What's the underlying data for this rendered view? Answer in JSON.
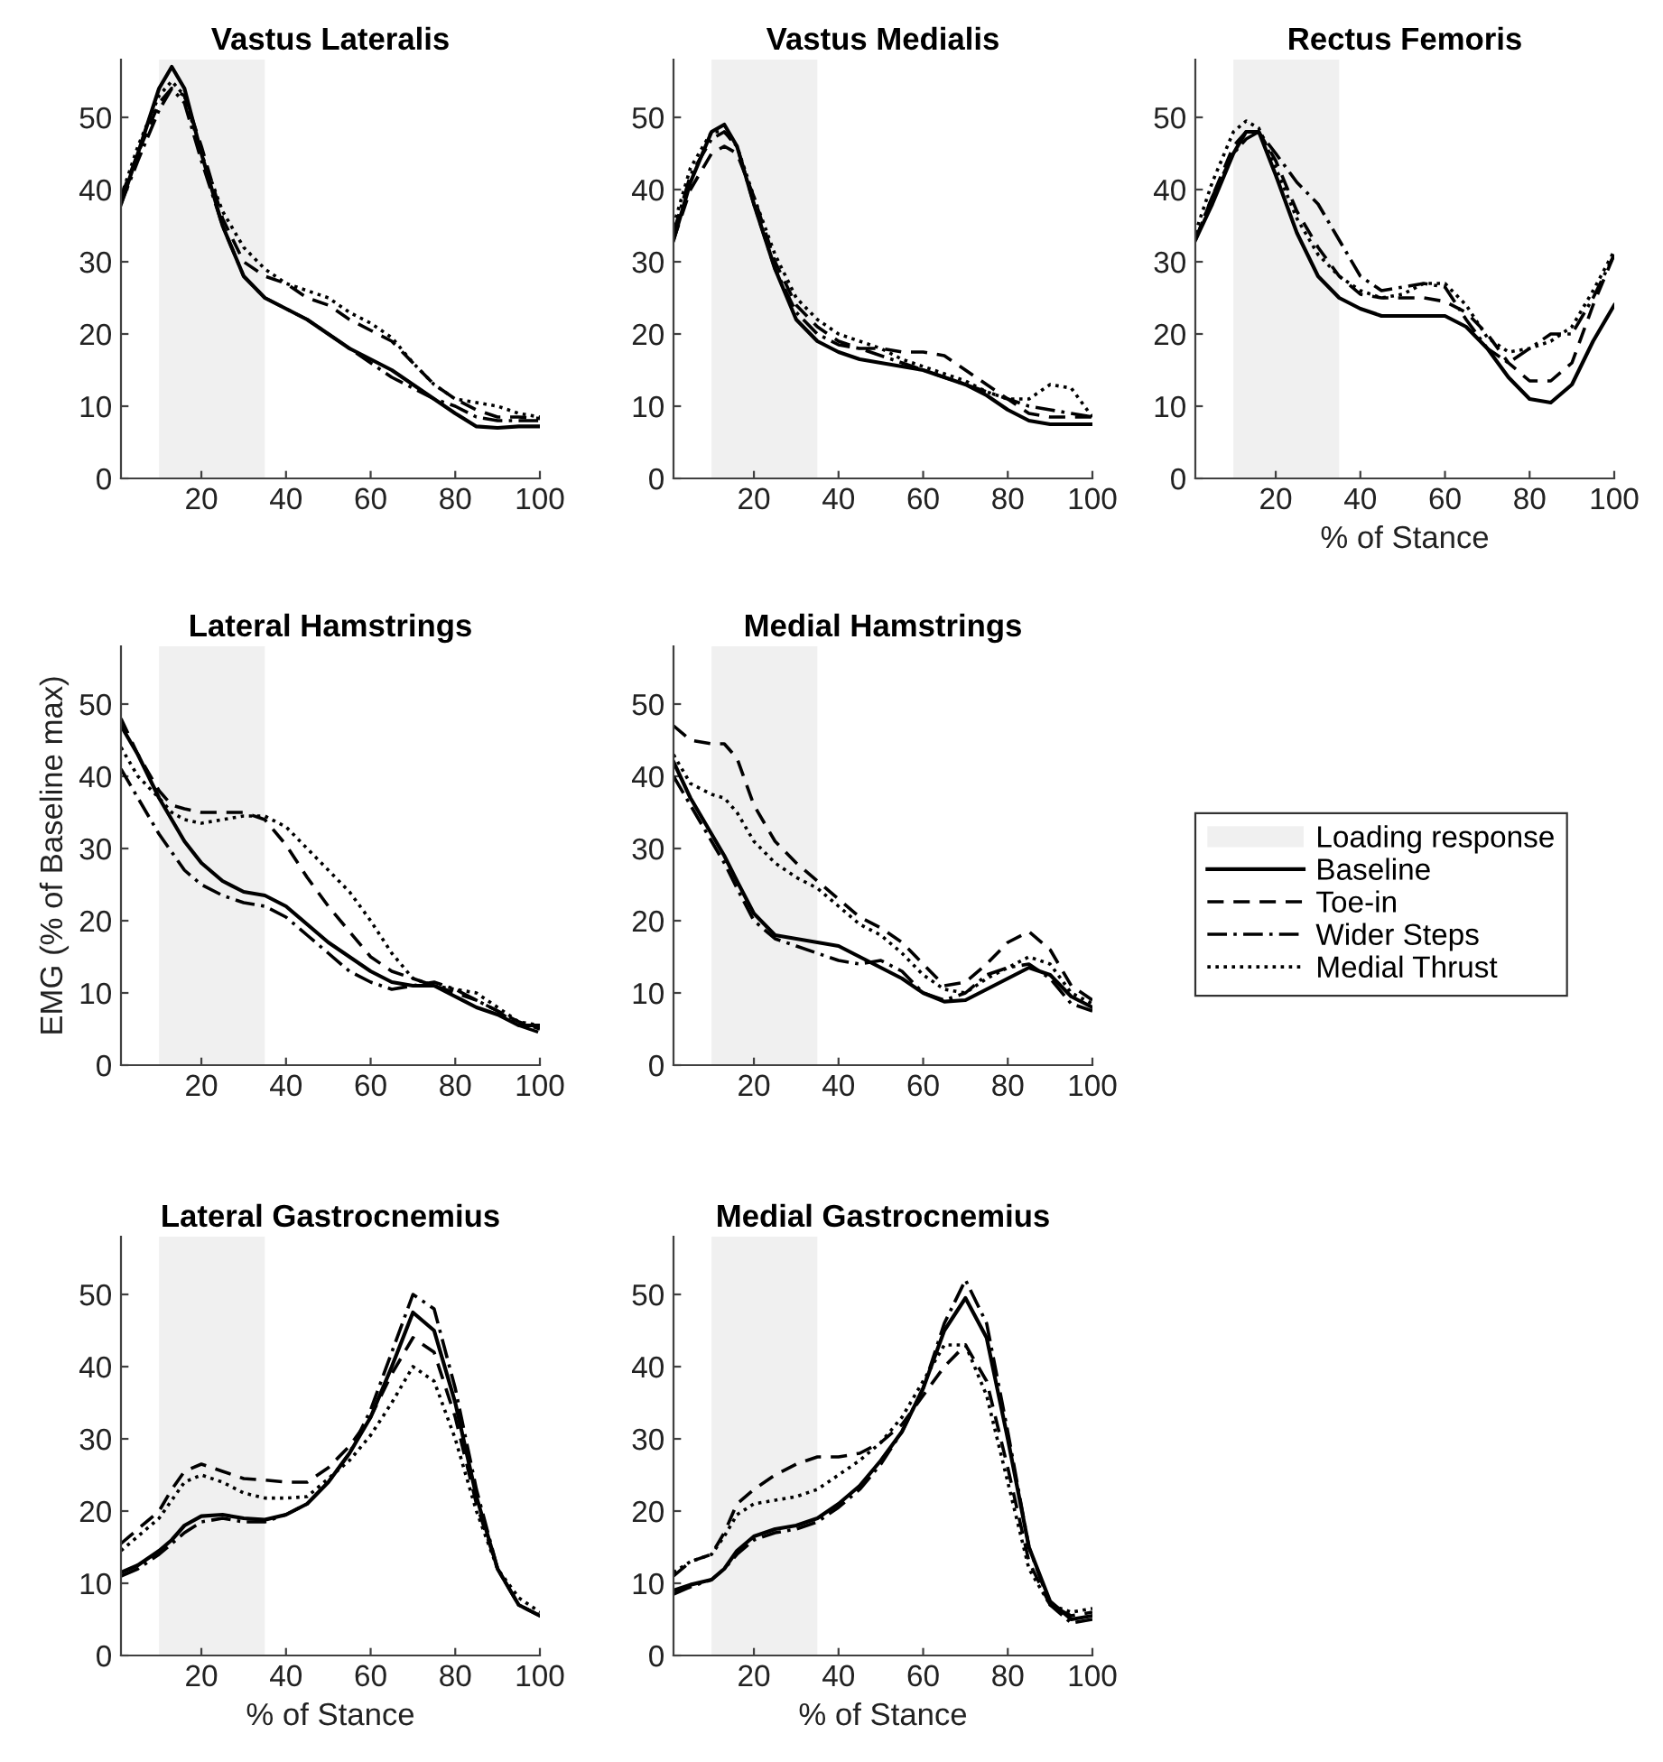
{
  "chart_data": [
    {
      "type": "line",
      "title": "Vastus Lateralis",
      "legend": "right",
      "x": [
        1,
        5,
        10,
        13,
        16,
        20,
        25,
        30,
        35,
        40,
        45,
        50,
        55,
        60,
        65,
        70,
        75,
        80,
        85,
        90,
        95,
        100
      ],
      "xlim": [
        1,
        100
      ],
      "ylim": [
        0,
        58
      ],
      "xticks": [
        20,
        40,
        60,
        80,
        100
      ],
      "yticks": [
        0,
        10,
        20,
        30,
        40,
        50
      ],
      "bands": [
        {
          "axis": "x",
          "from": 10,
          "to": 35,
          "label": "Loading response",
          "color": "#f0f0f0"
        }
      ],
      "series": [
        {
          "name": "Baseline",
          "color": "#000000",
          "line_style": "solid",
          "values": [
            38,
            45,
            54,
            57,
            54,
            45,
            35,
            28,
            25,
            23.5,
            22,
            20,
            18,
            16.5,
            15,
            13,
            11,
            9,
            7.2,
            7,
            7.2,
            7.2
          ]
        },
        {
          "name": "Toe-in",
          "color": "#000000",
          "line_style": "dashed",
          "values": [
            39,
            45,
            52,
            54,
            53,
            46,
            36,
            30,
            28,
            27,
            25,
            24,
            22,
            20.5,
            19,
            16,
            13,
            11,
            9.5,
            8.5,
            8.5,
            8.3
          ]
        },
        {
          "name": "Wider Steps",
          "color": "#000000",
          "line_style": "dashdot",
          "values": [
            38,
            44,
            51,
            54,
            52,
            44,
            35,
            28,
            25,
            23.5,
            22,
            20,
            18,
            16,
            14,
            12.5,
            11,
            10,
            8.5,
            8,
            8,
            8
          ]
        },
        {
          "name": "Medial Thrust",
          "color": "#000000",
          "line_style": "dotted",
          "values": [
            39,
            46,
            53,
            55,
            53,
            45,
            37,
            32,
            29,
            27,
            26,
            25,
            23,
            21.5,
            19.5,
            16,
            13,
            11,
            10.5,
            10,
            9,
            8.5
          ]
        }
      ]
    },
    {
      "type": "line",
      "title": "Vastus Medialis",
      "x": [
        1,
        5,
        10,
        13,
        16,
        20,
        25,
        30,
        35,
        40,
        45,
        50,
        55,
        60,
        65,
        70,
        75,
        80,
        85,
        90,
        95,
        100
      ],
      "xlim": [
        1,
        100
      ],
      "ylim": [
        0,
        58
      ],
      "xticks": [
        20,
        40,
        60,
        80,
        100
      ],
      "yticks": [
        0,
        10,
        20,
        30,
        40,
        50
      ],
      "bands": [
        {
          "axis": "x",
          "from": 10,
          "to": 35,
          "color": "#f0f0f0"
        }
      ],
      "series": [
        {
          "color": "#000000",
          "line_style": "solid",
          "values": [
            33,
            41,
            48,
            49,
            46,
            38,
            29,
            22,
            19,
            17.5,
            16.5,
            16,
            15.5,
            15,
            14,
            13,
            11.5,
            9.5,
            8,
            7.5,
            7.5,
            7.5
          ]
        },
        {
          "color": "#000000",
          "line_style": "dashed",
          "values": [
            33,
            40,
            45,
            46,
            45,
            39,
            30,
            24,
            21,
            19,
            18,
            18,
            17.5,
            17.5,
            17,
            15,
            13,
            11,
            9,
            8.5,
            8.5,
            8.5
          ]
        },
        {
          "color": "#000000",
          "line_style": "dashdot",
          "values": [
            34,
            42,
            47,
            48,
            46,
            38,
            29,
            23,
            20,
            18.5,
            18,
            17,
            16,
            15,
            14,
            13,
            12,
            11,
            10,
            9.5,
            9,
            8.5
          ]
        },
        {
          "color": "#000000",
          "line_style": "dotted",
          "values": [
            35,
            43,
            48,
            48,
            46,
            39,
            31,
            25,
            22,
            20,
            19,
            18,
            16.5,
            15.5,
            14.5,
            13.5,
            12,
            11,
            11,
            13,
            12.5,
            8.5
          ]
        }
      ]
    },
    {
      "type": "line",
      "title": "Rectus Femoris",
      "xlabel": "% of Stance",
      "x": [
        1,
        5,
        10,
        13,
        16,
        20,
        25,
        30,
        35,
        40,
        45,
        50,
        55,
        60,
        65,
        70,
        75,
        80,
        85,
        90,
        95,
        100
      ],
      "xlim": [
        1,
        100
      ],
      "ylim": [
        0,
        58
      ],
      "xticks": [
        20,
        40,
        60,
        80,
        100
      ],
      "yticks": [
        0,
        10,
        20,
        30,
        40,
        50
      ],
      "bands": [
        {
          "axis": "x",
          "from": 10,
          "to": 35,
          "color": "#f0f0f0"
        }
      ],
      "series": [
        {
          "color": "#000000",
          "line_style": "solid",
          "values": [
            33,
            38,
            45,
            48,
            48,
            42,
            34,
            28,
            25,
            23.5,
            22.5,
            22.5,
            22.5,
            22.5,
            21,
            18,
            14,
            11,
            10.5,
            13,
            19,
            24
          ]
        },
        {
          "color": "#000000",
          "line_style": "dashed",
          "values": [
            33,
            39,
            46,
            48,
            48,
            44,
            37,
            32,
            28,
            25.5,
            25,
            25,
            25,
            24.5,
            23,
            20,
            16,
            13.5,
            13.5,
            16,
            24,
            31
          ]
        },
        {
          "color": "#000000",
          "line_style": "dashdot",
          "values": [
            33,
            39,
            45,
            47,
            48,
            45,
            41,
            38,
            33,
            28,
            26,
            26.5,
            27,
            26.5,
            22,
            18,
            16,
            18,
            20,
            20,
            25,
            31
          ]
        },
        {
          "color": "#000000",
          "line_style": "dotted",
          "values": [
            34,
            41,
            48,
            49.5,
            48.5,
            43,
            36,
            31,
            28,
            26,
            25,
            25.5,
            27,
            27,
            24,
            19.5,
            17.5,
            18,
            19,
            21,
            26,
            31.5
          ]
        }
      ]
    },
    {
      "type": "line",
      "title": "Lateral Hamstrings",
      "ylabel": "EMG (% of Baseline max)",
      "x": [
        1,
        5,
        10,
        13,
        16,
        20,
        25,
        30,
        35,
        40,
        45,
        50,
        55,
        60,
        65,
        70,
        75,
        80,
        85,
        90,
        95,
        100
      ],
      "xlim": [
        1,
        100
      ],
      "ylim": [
        0,
        58
      ],
      "xticks": [
        20,
        40,
        60,
        80,
        100
      ],
      "yticks": [
        0,
        10,
        20,
        30,
        40,
        50
      ],
      "bands": [
        {
          "axis": "x",
          "from": 10,
          "to": 35,
          "color": "#f0f0f0"
        }
      ],
      "series": [
        {
          "color": "#000000",
          "line_style": "solid",
          "values": [
            47,
            43,
            37,
            34,
            31,
            28,
            25.5,
            24,
            23.5,
            22,
            19.5,
            17,
            15,
            13,
            11.5,
            11,
            11,
            9.5,
            8,
            7,
            5.5,
            5.5
          ]
        },
        {
          "color": "#000000",
          "line_style": "dashed",
          "values": [
            48,
            43,
            38,
            36,
            35.5,
            35,
            35,
            35,
            34,
            30.5,
            26,
            22,
            18.5,
            15,
            13,
            12,
            11,
            10,
            9,
            7.5,
            6,
            5
          ]
        },
        {
          "color": "#000000",
          "line_style": "dashdot",
          "values": [
            41,
            37,
            32,
            29.5,
            27,
            25,
            23.5,
            22.5,
            22,
            20.5,
            18,
            15.5,
            13,
            11.5,
            10.5,
            11,
            11.5,
            10.5,
            9,
            7.5,
            5.5,
            4.5
          ]
        },
        {
          "color": "#000000",
          "line_style": "dotted",
          "values": [
            44,
            40,
            37,
            35,
            34,
            33.5,
            34,
            34.5,
            34.5,
            33,
            30,
            27,
            24,
            20,
            15.5,
            12,
            11,
            10.5,
            10,
            8,
            6,
            5.5
          ]
        }
      ]
    },
    {
      "type": "line",
      "title": "Medial Hamstrings",
      "x": [
        1,
        5,
        10,
        13,
        16,
        20,
        25,
        30,
        35,
        40,
        45,
        50,
        55,
        60,
        65,
        70,
        75,
        80,
        85,
        90,
        95,
        100
      ],
      "xlim": [
        1,
        100
      ],
      "ylim": [
        0,
        58
      ],
      "xticks": [
        20,
        40,
        60,
        80,
        100
      ],
      "yticks": [
        0,
        10,
        20,
        30,
        40,
        50
      ],
      "bands": [
        {
          "axis": "x",
          "from": 10,
          "to": 35,
          "color": "#f0f0f0"
        }
      ],
      "series": [
        {
          "color": "#000000",
          "line_style": "solid",
          "values": [
            42,
            37,
            32,
            29,
            25.5,
            21,
            18,
            17.5,
            17,
            16.5,
            15,
            13.5,
            12,
            10,
            8.8,
            9,
            10.5,
            12,
            13.5,
            12.5,
            9.5,
            8
          ]
        },
        {
          "color": "#000000",
          "line_style": "dashed",
          "values": [
            47,
            45,
            44.5,
            44.5,
            42.5,
            36,
            31,
            28,
            25.5,
            23,
            20.5,
            19,
            17,
            14,
            11,
            11.5,
            14,
            17,
            18.5,
            16,
            11,
            9
          ]
        },
        {
          "color": "#000000",
          "line_style": "dashdot",
          "values": [
            40,
            36,
            31,
            28,
            24.5,
            20,
            17.5,
            16.5,
            15.5,
            14.5,
            14,
            14.5,
            13,
            10,
            9,
            10,
            12.5,
            13.5,
            14,
            12,
            8.5,
            7.5
          ]
        },
        {
          "color": "#000000",
          "line_style": "dotted",
          "values": [
            43,
            39,
            37.5,
            37,
            35,
            31,
            28,
            26,
            24.5,
            22,
            19.5,
            18,
            15.5,
            12.5,
            10.5,
            10,
            12,
            13.5,
            15,
            14,
            10,
            8.5
          ]
        }
      ]
    },
    {
      "type": "line",
      "title": "Lateral Gastrocnemius",
      "xlabel": "% of Stance",
      "x": [
        1,
        5,
        10,
        13,
        16,
        20,
        25,
        30,
        35,
        40,
        45,
        50,
        55,
        60,
        65,
        70,
        75,
        80,
        85,
        90,
        95,
        100
      ],
      "xlim": [
        1,
        100
      ],
      "ylim": [
        0,
        58
      ],
      "xticks": [
        20,
        40,
        60,
        80,
        100
      ],
      "yticks": [
        0,
        10,
        20,
        30,
        40,
        50
      ],
      "bands": [
        {
          "axis": "x",
          "from": 10,
          "to": 35,
          "color": "#f0f0f0"
        }
      ],
      "series": [
        {
          "color": "#000000",
          "line_style": "solid",
          "values": [
            11.5,
            12.5,
            14.5,
            16,
            18,
            19.3,
            19.5,
            19,
            18.8,
            19.5,
            21,
            24,
            28,
            33,
            40,
            47.5,
            45,
            35,
            22,
            12,
            7,
            5.5
          ]
        },
        {
          "color": "#000000",
          "line_style": "dashed",
          "values": [
            15.5,
            17.5,
            20,
            23,
            25.5,
            26.5,
            25.5,
            24.5,
            24.3,
            24,
            24,
            26,
            29,
            33,
            39,
            44,
            42,
            33,
            21,
            12,
            7,
            5.5
          ]
        },
        {
          "color": "#000000",
          "line_style": "dashdot",
          "values": [
            11,
            12,
            14,
            15.5,
            17,
            18.5,
            19,
            18.5,
            18.5,
            19.5,
            21,
            24,
            28,
            34,
            42,
            50,
            48,
            37,
            23,
            12,
            7,
            5.5
          ]
        },
        {
          "color": "#000000",
          "line_style": "dotted",
          "values": [
            14.5,
            16.5,
            19,
            21.5,
            24,
            25,
            24,
            22.5,
            21.8,
            21.8,
            22,
            24.5,
            27,
            30.5,
            35,
            40,
            38,
            30,
            20,
            12,
            8,
            6
          ]
        }
      ]
    },
    {
      "type": "line",
      "title": "Medial Gastrocnemius",
      "xlabel": "% of Stance",
      "x": [
        1,
        5,
        10,
        13,
        16,
        20,
        25,
        30,
        35,
        40,
        45,
        50,
        55,
        60,
        65,
        70,
        75,
        80,
        85,
        90,
        95,
        100
      ],
      "xlim": [
        1,
        100
      ],
      "ylim": [
        0,
        58
      ],
      "xticks": [
        20,
        40,
        60,
        80,
        100
      ],
      "yticks": [
        0,
        10,
        20,
        30,
        40,
        50
      ],
      "bands": [
        {
          "axis": "x",
          "from": 10,
          "to": 35,
          "color": "#f0f0f0"
        }
      ],
      "series": [
        {
          "color": "#000000",
          "line_style": "solid",
          "values": [
            9,
            9.8,
            10.5,
            12,
            14.5,
            16.5,
            17.5,
            18,
            19,
            21,
            23.5,
            27,
            31,
            37,
            45,
            49.5,
            44,
            30,
            15,
            7.5,
            5,
            5.5
          ]
        },
        {
          "color": "#000000",
          "line_style": "dashed",
          "values": [
            11,
            13,
            14,
            17,
            21,
            23,
            25,
            26.5,
            27.5,
            27.5,
            28,
            29.5,
            32,
            36,
            40,
            43,
            38,
            26,
            13,
            7,
            5.5,
            6
          ]
        },
        {
          "color": "#000000",
          "line_style": "dashdot",
          "values": [
            8.5,
            9.5,
            10.5,
            12,
            14,
            16,
            17,
            17.5,
            18.5,
            20.5,
            23,
            26.5,
            31,
            37,
            46,
            52,
            46,
            31,
            15,
            7,
            4.5,
            5
          ]
        },
        {
          "color": "#000000",
          "line_style": "dotted",
          "values": [
            11.5,
            13,
            14,
            16.5,
            19.5,
            21,
            21.5,
            22,
            23,
            25,
            27,
            29.5,
            33,
            38,
            43,
            43,
            36,
            24,
            12,
            7,
            6,
            6.5
          ]
        }
      ]
    }
  ]
}
